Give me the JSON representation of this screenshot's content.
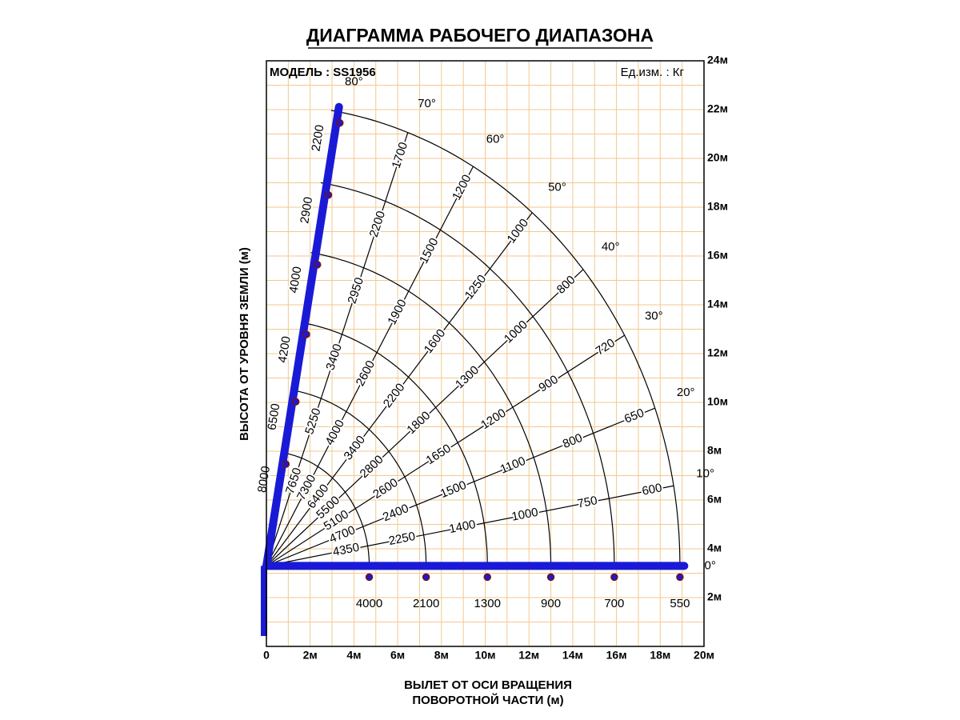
{
  "title": "ДИАГРАММА РАБОЧЕГО ДИАПАЗОНА",
  "model": "МОДЕЛЬ : SS1956",
  "units": "Ед.изм. : Кг",
  "x_axis": {
    "title": [
      "ВЫЛЕТ ОТ ОСИ ВРАЩЕНИЯ",
      "ПОВОРОТНОЙ ЧАСТИ (м)"
    ],
    "ticks": [
      "0",
      "2м",
      "4м",
      "6м",
      "8м",
      "10м",
      "12м",
      "14м",
      "16м",
      "18м",
      "20м"
    ]
  },
  "y_axis": {
    "title": "ВЫСОТА ОТ УРОВНЯ ЗЕМЛИ (м)",
    "ticks": [
      "2м",
      "4м",
      "6м",
      "8м",
      "10м",
      "12м",
      "14м",
      "16м",
      "18м",
      "20м",
      "22м",
      "24м"
    ]
  },
  "rays": [
    {
      "angle": "80°",
      "loads": [
        8000,
        6500,
        4200,
        4000,
        2900,
        2200
      ]
    },
    {
      "angle": "70°",
      "loads": [
        7650,
        5250,
        3400,
        2950,
        2200,
        1700
      ]
    },
    {
      "angle": "60°",
      "loads": [
        7300,
        4000,
        2600,
        1900,
        1500,
        1200
      ]
    },
    {
      "angle": "50°",
      "loads": [
        6400,
        3400,
        2200,
        1600,
        1250,
        1000
      ]
    },
    {
      "angle": "40°",
      "loads": [
        5500,
        2800,
        1800,
        1300,
        1000,
        800
      ]
    },
    {
      "angle": "30°",
      "loads": [
        5100,
        2600,
        1650,
        1200,
        900,
        720
      ]
    },
    {
      "angle": "20°",
      "loads": [
        4700,
        2400,
        1500,
        1100,
        800,
        650
      ]
    },
    {
      "angle": "10°",
      "loads": [
        4350,
        2250,
        1400,
        1000,
        750,
        600
      ]
    },
    {
      "angle": "0°",
      "loads": [
        4000,
        2100,
        1300,
        900,
        700,
        550
      ]
    }
  ]
}
